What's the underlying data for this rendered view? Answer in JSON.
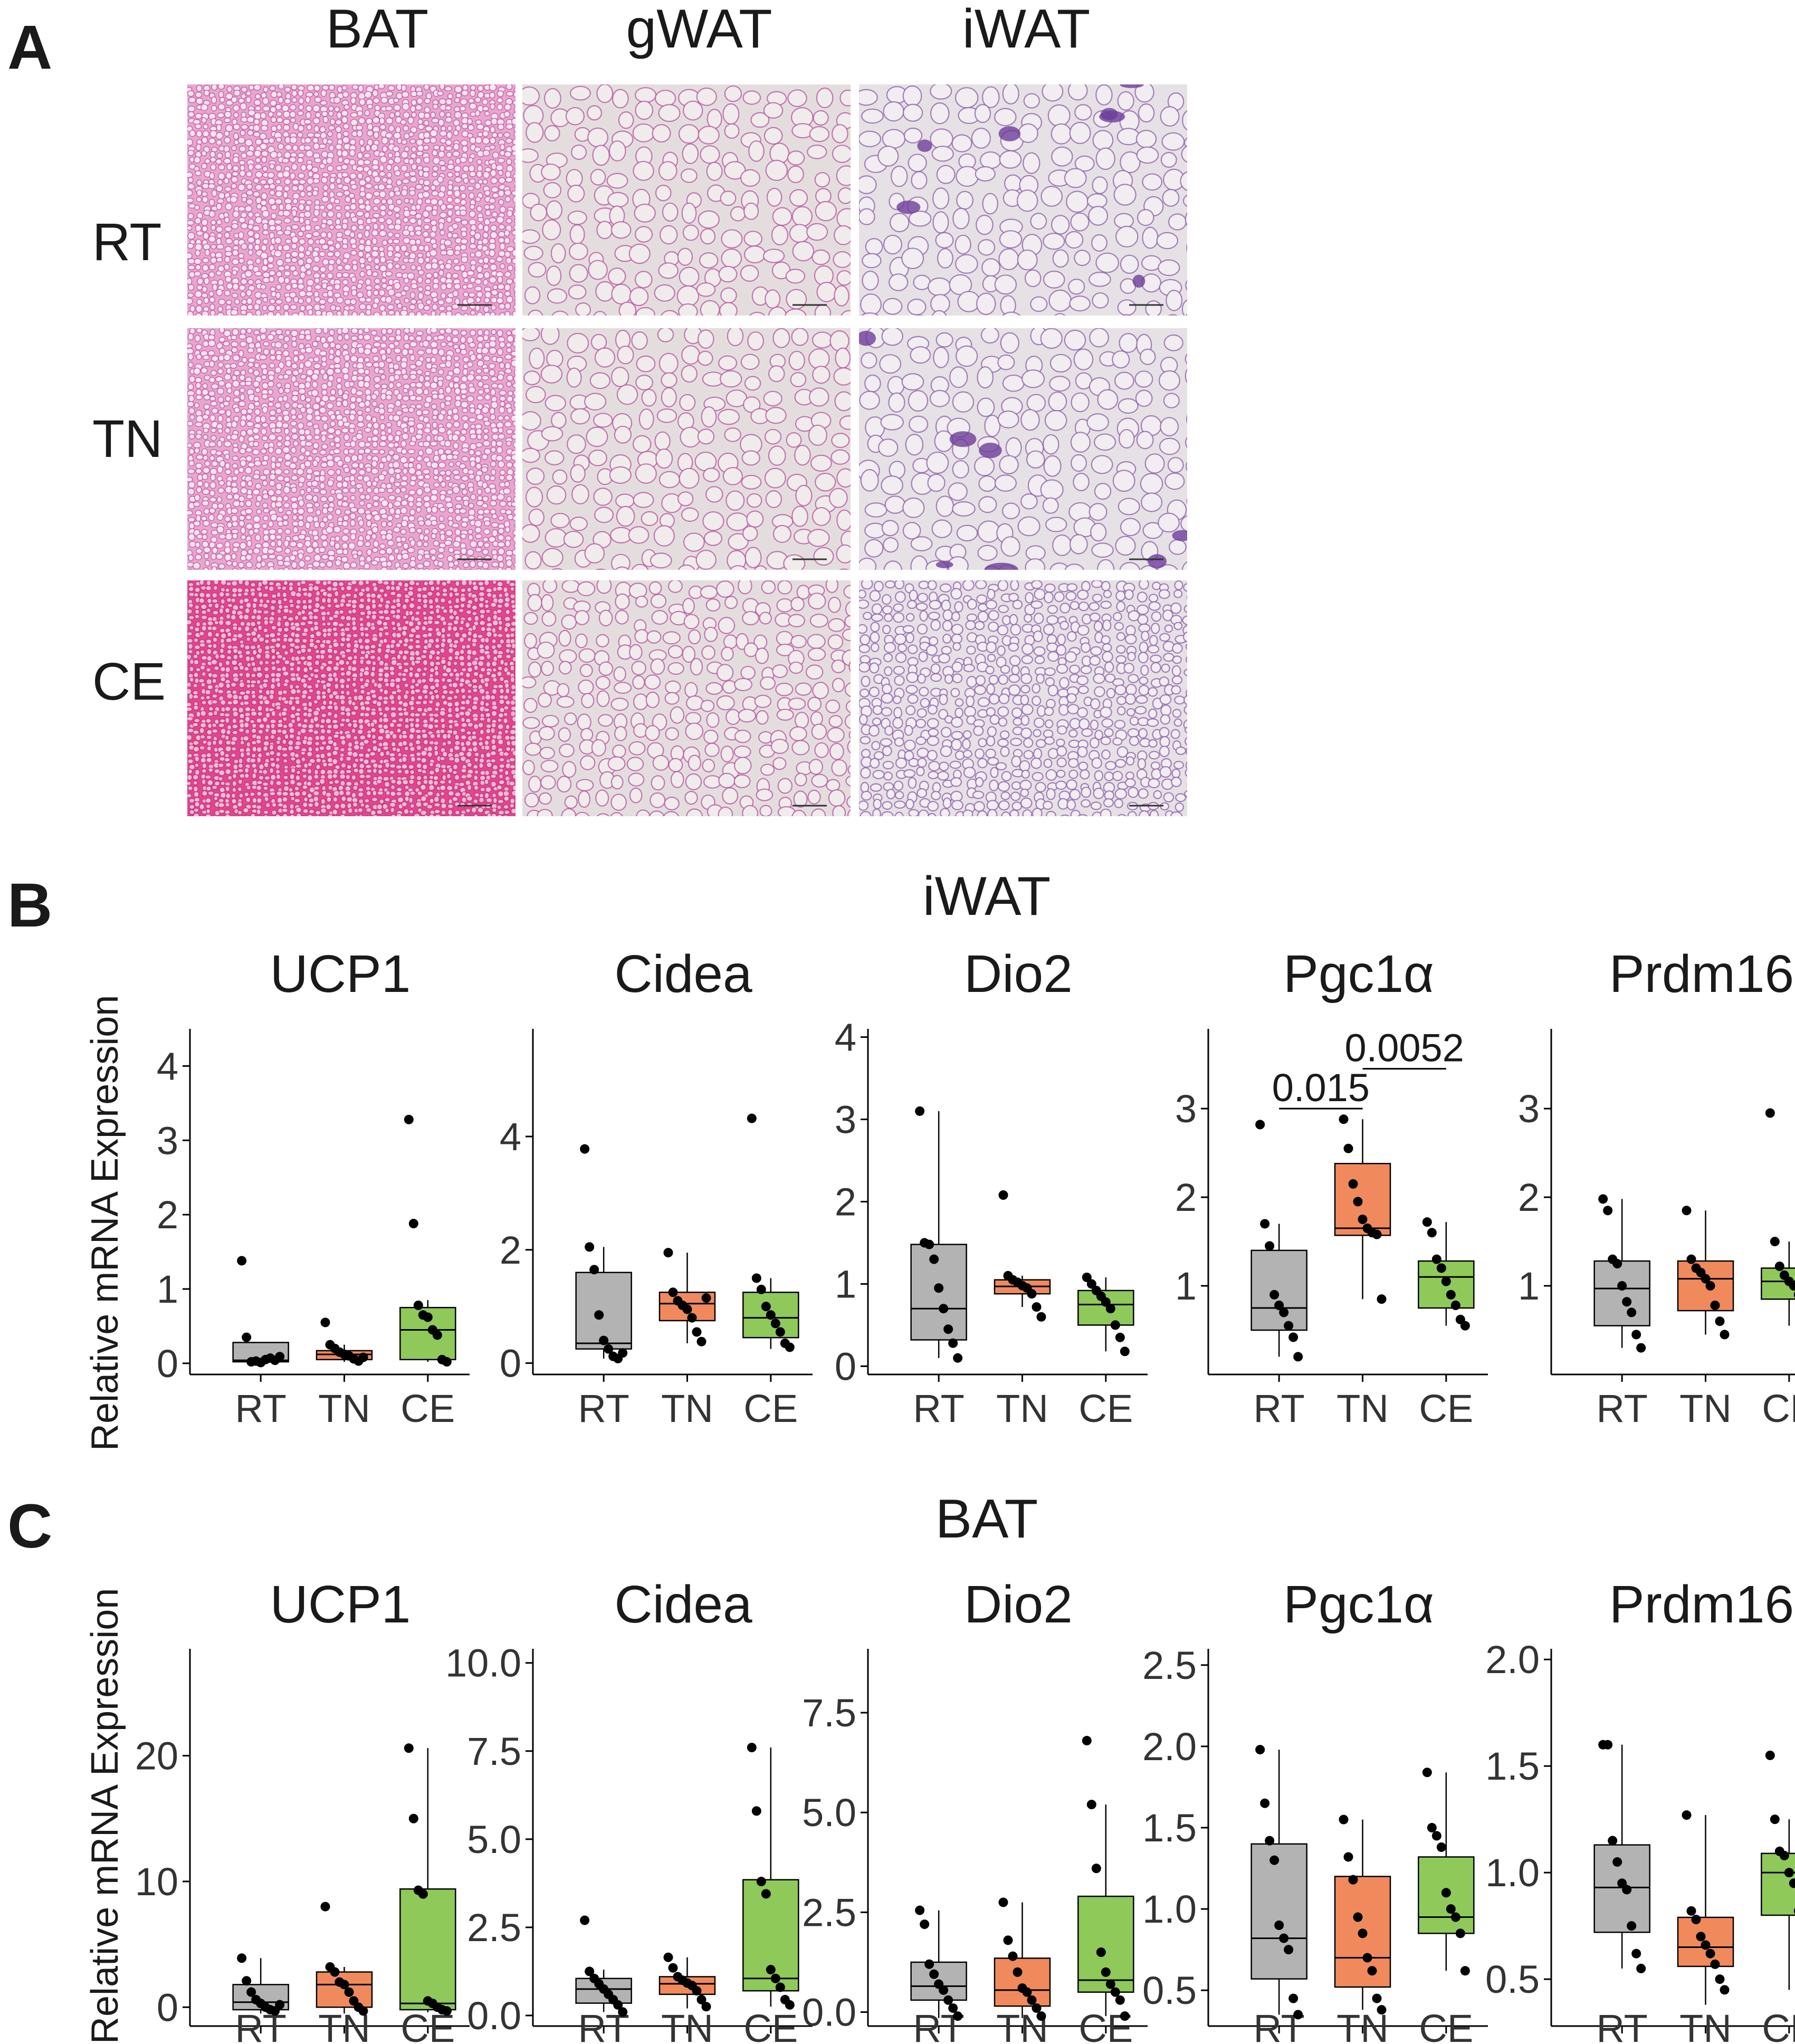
{
  "panel_a": {
    "letter": "A",
    "columns": [
      "BAT",
      "gWAT",
      "iWAT"
    ],
    "rows": [
      "RT",
      "TN",
      "CE"
    ],
    "tissue_colors": {
      "BAT": {
        "base": "#e8a6cf",
        "cell": "#f6e6f0",
        "membrane": "#c04a9a"
      },
      "BAT_CE": {
        "base": "#e0468f",
        "cell": "#f3bcd6",
        "membrane": "#c02872"
      },
      "WAT": {
        "base": "#e3dedd",
        "cell": "#f0eceb",
        "membrane": "#b54ea0"
      },
      "iWAT": {
        "base": "#e6e1e4",
        "cell": "#f1edf0",
        "membrane": "#8a5aa8"
      }
    }
  },
  "panel_b": {
    "letter": "B",
    "section_title": "iWAT",
    "ylabel": "Relative mRNA Expression"
  },
  "panel_c": {
    "letter": "C",
    "section_title": "BAT",
    "ylabel": "Relative mRNA Expression"
  },
  "colors": {
    "RT": "#b3b3b3",
    "TN": "#f08a5d",
    "CE": "#8ec95a"
  },
  "chart_data": [
    {
      "type": "box",
      "panel": "B",
      "title": "UCP1",
      "categories": [
        "RT",
        "TN",
        "CE"
      ],
      "yticks": [
        0,
        1,
        2,
        3,
        4
      ],
      "ylim": [
        -0.15,
        4.5
      ],
      "boxes": [
        {
          "group": "RT",
          "q1": 0.02,
          "median": 0.04,
          "q3": 0.28,
          "whisker_low": 0.0,
          "whisker_high": 0.28,
          "points": [
            1.38,
            0.35,
            0.02,
            0.03,
            0.01,
            0.05,
            0.07,
            0.04,
            0.09
          ]
        },
        {
          "group": "TN",
          "q1": 0.05,
          "median": 0.12,
          "q3": 0.17,
          "whisker_low": 0.02,
          "whisker_high": 0.25,
          "points": [
            0.55,
            0.25,
            0.2,
            0.15,
            0.12,
            0.1,
            0.06,
            0.03,
            0.08
          ]
        },
        {
          "group": "CE",
          "q1": 0.05,
          "median": 0.45,
          "q3": 0.75,
          "whisker_low": 0.02,
          "whisker_high": 0.85,
          "points": [
            3.28,
            1.88,
            0.78,
            0.65,
            0.62,
            0.45,
            0.38,
            0.05,
            0.02
          ]
        }
      ],
      "annotations": []
    },
    {
      "type": "box",
      "panel": "B",
      "title": "Cidea",
      "categories": [
        "RT",
        "TN",
        "CE"
      ],
      "yticks": [
        0,
        2,
        4
      ],
      "ylim": [
        -0.2,
        5.9
      ],
      "boxes": [
        {
          "group": "RT",
          "q1": 0.25,
          "median": 0.35,
          "q3": 1.6,
          "whisker_low": 0.08,
          "whisker_high": 2.05,
          "points": [
            3.78,
            2.05,
            1.65,
            0.85,
            0.4,
            0.25,
            0.12,
            0.08,
            0.18
          ]
        },
        {
          "group": "TN",
          "q1": 0.75,
          "median": 1.05,
          "q3": 1.25,
          "whisker_low": 0.35,
          "whisker_high": 1.95,
          "points": [
            1.95,
            1.25,
            1.1,
            1.02,
            0.95,
            0.8,
            0.55,
            0.38,
            1.15
          ]
        },
        {
          "group": "CE",
          "q1": 0.45,
          "median": 0.8,
          "q3": 1.25,
          "whisker_low": 0.25,
          "whisker_high": 1.5,
          "points": [
            4.32,
            1.5,
            1.3,
            1.0,
            0.85,
            0.7,
            0.55,
            0.35,
            0.28
          ]
        }
      ],
      "annotations": []
    },
    {
      "type": "box",
      "panel": "B",
      "title": "Dio2",
      "categories": [
        "RT",
        "TN",
        "CE"
      ],
      "yticks": [
        0,
        1,
        2,
        3,
        4
      ],
      "ylim": [
        -0.1,
        4.1
      ],
      "boxes": [
        {
          "group": "RT",
          "q1": 0.32,
          "median": 0.7,
          "q3": 1.48,
          "whisker_low": 0.1,
          "whisker_high": 3.1,
          "points": [
            3.1,
            1.5,
            1.48,
            1.3,
            0.95,
            0.7,
            0.45,
            0.28,
            0.1
          ]
        },
        {
          "group": "TN",
          "q1": 0.88,
          "median": 0.97,
          "q3": 1.05,
          "whisker_low": 0.72,
          "whisker_high": 1.1,
          "points": [
            2.08,
            1.1,
            1.05,
            1.02,
            0.98,
            0.95,
            0.88,
            0.72,
            0.6
          ]
        },
        {
          "group": "CE",
          "q1": 0.5,
          "median": 0.75,
          "q3": 0.92,
          "whisker_low": 0.18,
          "whisker_high": 1.08,
          "points": [
            1.08,
            1.0,
            0.92,
            0.85,
            0.78,
            0.7,
            0.5,
            0.35,
            0.18
          ]
        }
      ],
      "annotations": []
    },
    {
      "type": "box",
      "panel": "B",
      "title": "Pgc1α",
      "categories": [
        "RT",
        "TN",
        "CE"
      ],
      "yticks": [
        1,
        2,
        3
      ],
      "ylim": [
        0.0,
        3.9
      ],
      "boxes": [
        {
          "group": "RT",
          "q1": 0.5,
          "median": 0.75,
          "q3": 1.4,
          "whisker_low": 0.2,
          "whisker_high": 1.7,
          "points": [
            2.82,
            1.7,
            1.45,
            0.9,
            0.78,
            0.7,
            0.55,
            0.42,
            0.2
          ]
        },
        {
          "group": "TN",
          "q1": 1.57,
          "median": 1.65,
          "q3": 2.38,
          "whisker_low": 0.85,
          "whisker_high": 2.88,
          "points": [
            2.88,
            2.55,
            2.15,
            1.95,
            1.75,
            1.65,
            1.6,
            1.58,
            0.85
          ]
        },
        {
          "group": "CE",
          "q1": 0.75,
          "median": 1.1,
          "q3": 1.28,
          "whisker_low": 0.55,
          "whisker_high": 1.72,
          "points": [
            1.72,
            1.6,
            1.3,
            1.2,
            1.05,
            0.9,
            0.78,
            0.62,
            0.55
          ]
        }
      ],
      "annotations": [
        {
          "label": "0.015",
          "from": "RT",
          "to": "TN",
          "y": 3.0
        },
        {
          "label": "0.0052",
          "from": "TN",
          "to": "CE",
          "y": 3.45
        }
      ]
    },
    {
      "type": "box",
      "panel": "B",
      "title": "Prdm16",
      "categories": [
        "RT",
        "TN",
        "CE"
      ],
      "yticks": [
        1,
        2,
        3
      ],
      "ylim": [
        0.0,
        3.9
      ],
      "boxes": [
        {
          "group": "RT",
          "q1": 0.55,
          "median": 0.97,
          "q3": 1.28,
          "whisker_low": 0.3,
          "whisker_high": 1.98,
          "points": [
            1.98,
            1.85,
            1.3,
            1.25,
            1.0,
            0.82,
            0.7,
            0.45,
            0.3
          ]
        },
        {
          "group": "TN",
          "q1": 0.72,
          "median": 1.08,
          "q3": 1.28,
          "whisker_low": 0.45,
          "whisker_high": 1.85,
          "points": [
            1.85,
            1.3,
            1.2,
            1.15,
            1.08,
            1.0,
            0.78,
            0.6,
            0.45
          ]
        },
        {
          "group": "CE",
          "q1": 0.85,
          "median": 1.05,
          "q3": 1.2,
          "whisker_low": 0.55,
          "whisker_high": 1.5,
          "points": [
            2.95,
            1.5,
            1.22,
            1.12,
            1.05,
            1.0,
            0.9,
            0.78,
            0.55
          ]
        }
      ],
      "annotations": []
    },
    {
      "type": "box",
      "panel": "C",
      "title": "UCP1",
      "categories": [
        "RT",
        "TN",
        "CE"
      ],
      "yticks": [
        0,
        10,
        20
      ],
      "ylim": [
        -1.5,
        28.5
      ],
      "boxes": [
        {
          "group": "RT",
          "q1": -0.2,
          "median": 0.4,
          "q3": 1.8,
          "whisker_low": -0.5,
          "whisker_high": 3.9,
          "points": [
            3.9,
            2.1,
            1.2,
            0.6,
            0.3,
            0.0,
            -0.2,
            -0.3,
            0.2
          ]
        },
        {
          "group": "TN",
          "q1": 0.0,
          "median": 1.8,
          "q3": 2.8,
          "whisker_low": -0.5,
          "whisker_high": 3.2,
          "points": [
            8.0,
            3.2,
            2.8,
            2.0,
            1.8,
            1.2,
            0.5,
            0.0,
            -0.3
          ]
        },
        {
          "group": "CE",
          "q1": -0.2,
          "median": 0.3,
          "q3": 9.4,
          "whisker_low": -0.4,
          "whisker_high": 20.6,
          "points": [
            20.6,
            15.0,
            9.3,
            9.0,
            0.5,
            0.3,
            0.0,
            -0.2,
            -0.3
          ]
        }
      ],
      "annotations": []
    },
    {
      "type": "box",
      "panel": "C",
      "title": "Cidea",
      "categories": [
        "RT",
        "TN",
        "CE"
      ],
      "yticks": [
        0.0,
        2.5,
        5.0,
        7.5,
        10.0
      ],
      "ylim": [
        -0.3,
        10.4
      ],
      "boxes": [
        {
          "group": "RT",
          "q1": 0.35,
          "median": 0.75,
          "q3": 1.05,
          "whisker_low": 0.1,
          "whisker_high": 1.3,
          "points": [
            2.7,
            1.25,
            1.05,
            0.9,
            0.75,
            0.6,
            0.45,
            0.3,
            0.1
          ]
        },
        {
          "group": "TN",
          "q1": 0.6,
          "median": 0.9,
          "q3": 1.1,
          "whisker_low": 0.2,
          "whisker_high": 1.65,
          "points": [
            1.65,
            1.35,
            1.1,
            1.0,
            0.92,
            0.85,
            0.7,
            0.45,
            0.25
          ]
        },
        {
          "group": "CE",
          "q1": 0.7,
          "median": 1.05,
          "q3": 3.85,
          "whisker_low": 0.25,
          "whisker_high": 7.6,
          "points": [
            7.6,
            5.8,
            3.8,
            3.45,
            1.3,
            1.05,
            0.8,
            0.45,
            0.3
          ]
        }
      ],
      "annotations": []
    },
    {
      "type": "box",
      "panel": "C",
      "title": "Dio2",
      "categories": [
        "RT",
        "TN",
        "CE"
      ],
      "yticks": [
        0.0,
        2.5,
        5.0,
        7.5
      ],
      "ylim": [
        -0.35,
        9.1
      ],
      "boxes": [
        {
          "group": "RT",
          "q1": 0.3,
          "median": 0.65,
          "q3": 1.25,
          "whisker_low": -0.15,
          "whisker_high": 2.55,
          "points": [
            2.55,
            2.2,
            1.2,
            0.95,
            0.7,
            0.55,
            0.3,
            0.1,
            -0.1
          ]
        },
        {
          "group": "TN",
          "q1": 0.15,
          "median": 0.55,
          "q3": 1.35,
          "whisker_low": -0.15,
          "whisker_high": 2.75,
          "points": [
            2.75,
            1.8,
            1.4,
            1.0,
            0.6,
            0.5,
            0.3,
            0.1,
            -0.1
          ]
        },
        {
          "group": "CE",
          "q1": 0.5,
          "median": 0.8,
          "q3": 2.9,
          "whisker_low": -0.1,
          "whisker_high": 5.2,
          "points": [
            6.8,
            5.2,
            3.6,
            1.5,
            1.0,
            0.7,
            0.5,
            0.3,
            -0.1
          ]
        }
      ],
      "annotations": []
    },
    {
      "type": "box",
      "panel": "C",
      "title": "Pgc1α",
      "categories": [
        "RT",
        "TN",
        "CE"
      ],
      "yticks": [
        0.5,
        1.0,
        1.5,
        2.0,
        2.5
      ],
      "ylim": [
        0.28,
        2.6
      ],
      "boxes": [
        {
          "group": "RT",
          "q1": 0.57,
          "median": 0.82,
          "q3": 1.4,
          "whisker_low": 0.35,
          "whisker_high": 1.98,
          "points": [
            1.98,
            1.65,
            1.42,
            1.3,
            0.9,
            0.82,
            0.75,
            0.45,
            0.35
          ]
        },
        {
          "group": "TN",
          "q1": 0.52,
          "median": 0.7,
          "q3": 1.2,
          "whisker_low": 0.38,
          "whisker_high": 1.55,
          "points": [
            1.55,
            1.32,
            1.18,
            0.95,
            0.85,
            0.7,
            0.62,
            0.45,
            0.38
          ]
        },
        {
          "group": "CE",
          "q1": 0.85,
          "median": 0.95,
          "q3": 1.32,
          "whisker_low": 0.62,
          "whisker_high": 1.84,
          "points": [
            1.84,
            1.5,
            1.45,
            1.38,
            1.1,
            1.0,
            0.95,
            0.85,
            0.62
          ]
        }
      ],
      "annotations": []
    },
    {
      "type": "box",
      "panel": "C",
      "title": "Prdm16",
      "categories": [
        "RT",
        "TN",
        "CE"
      ],
      "yticks": [
        0.5,
        1.0,
        1.5,
        2.0
      ],
      "ylim": [
        0.28,
        2.05
      ],
      "boxes": [
        {
          "group": "RT",
          "q1": 0.72,
          "median": 0.93,
          "q3": 1.13,
          "whisker_low": 0.55,
          "whisker_high": 1.6,
          "points": [
            1.6,
            1.6,
            1.15,
            1.05,
            0.95,
            0.92,
            0.75,
            0.62,
            0.55
          ]
        },
        {
          "group": "TN",
          "q1": 0.56,
          "median": 0.65,
          "q3": 0.79,
          "whisker_low": 0.38,
          "whisker_high": 1.27,
          "points": [
            1.27,
            0.82,
            0.78,
            0.7,
            0.66,
            0.62,
            0.57,
            0.5,
            0.45
          ]
        },
        {
          "group": "CE",
          "q1": 0.8,
          "median": 1.0,
          "q3": 1.09,
          "whisker_low": 0.45,
          "whisker_high": 1.25,
          "points": [
            1.55,
            1.25,
            1.1,
            1.08,
            1.0,
            0.95,
            0.82,
            0.5,
            0.3
          ]
        }
      ],
      "annotations": []
    }
  ]
}
